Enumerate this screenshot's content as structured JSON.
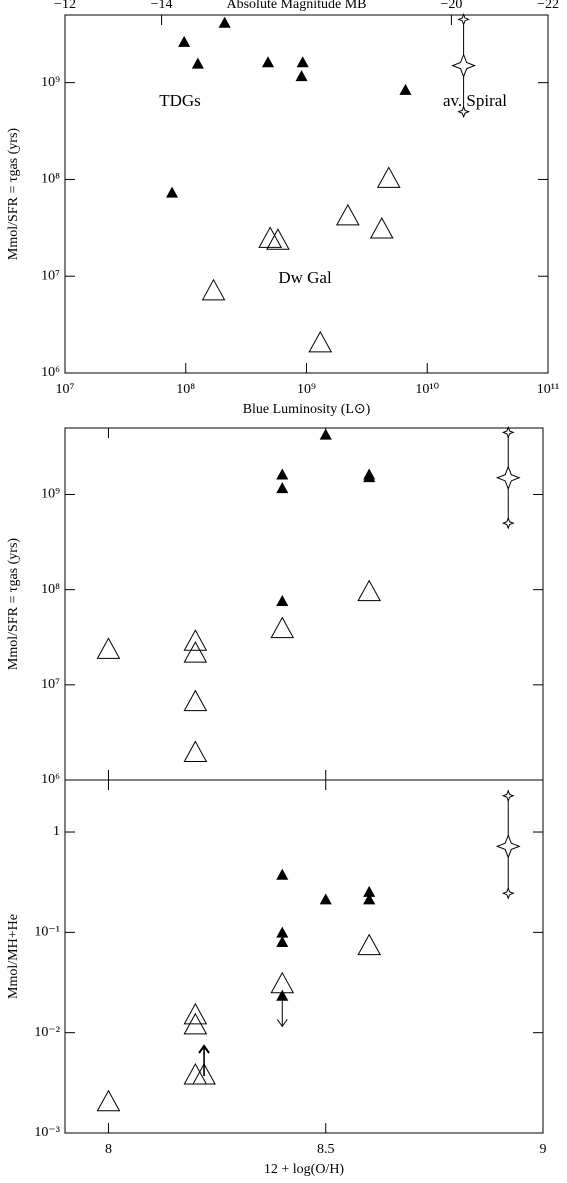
{
  "chart_data": [
    {
      "type": "scatter",
      "xlabel": "Blue Luminosity (L⊙)",
      "ylabel": "Mmol/SFR = τgas (yrs)",
      "x2label": "Absolute Magnitude MB",
      "xscale": "log",
      "yscale": "log",
      "xlim": [
        10000000,
        100000000000
      ],
      "ylim": [
        1000000,
        5000000000
      ],
      "xticks": [
        {
          "value": 10000000,
          "label": "10⁷"
        },
        {
          "value": 100000000,
          "label": "10⁸"
        },
        {
          "value": 1000000000,
          "label": "10⁹"
        },
        {
          "value": 10000000000,
          "label": "10¹⁰"
        },
        {
          "value": 100000000000,
          "label": "10¹¹"
        }
      ],
      "yticks": [
        {
          "value": 1000000,
          "label": "10⁶"
        },
        {
          "value": 10000000,
          "label": "10⁷"
        },
        {
          "value": 100000000,
          "label": "10⁸"
        },
        {
          "value": 1000000000,
          "label": "10⁹"
        }
      ],
      "x2lim": [
        -12,
        -22
      ],
      "x2ticks": [
        {
          "value": -12,
          "label": "−12"
        },
        {
          "value": -14,
          "label": "−14"
        },
        {
          "value": -20,
          "label": "−20"
        },
        {
          "value": -22,
          "label": "−22"
        }
      ],
      "annotations": [
        "TDGs",
        "av. Spiral",
        "Dw Gal"
      ],
      "series": [
        {
          "marker": "filled-triangle",
          "x": [
            77000000,
            97000000,
            126000000,
            210000000,
            480000000,
            930000000,
            910000000,
            6600000000
          ],
          "values": [
            72000000,
            2600000000,
            1550000000,
            4100000000,
            1600000000,
            1600000000,
            1150000000,
            830000000
          ]
        },
        {
          "marker": "open-triangle",
          "x": [
            4800000000,
            2200000000,
            4200000000,
            500000000,
            580000000,
            170000000,
            1300000000
          ],
          "values": [
            100000000,
            41000000,
            30000000,
            24000000,
            23000000,
            6900000,
            2000000
          ]
        },
        {
          "marker": "star",
          "x": [
            20000000000
          ],
          "values": [
            1500000000
          ],
          "low": [
            500000000
          ],
          "high": [
            4500000000
          ]
        }
      ]
    },
    {
      "type": "scatter",
      "ylabel": "Mmol/SFR = τgas (yrs)",
      "xscale": "linear",
      "yscale": "log",
      "xlim": [
        7.9,
        9.0
      ],
      "ylim": [
        1000000,
        5000000000
      ],
      "xticks": [
        8,
        8.5,
        9
      ],
      "show_xtick_labels": false,
      "yticks": [
        {
          "value": 1000000,
          "label": "10⁶"
        },
        {
          "value": 10000000,
          "label": "10⁷"
        },
        {
          "value": 100000000,
          "label": "10⁸"
        },
        {
          "value": 1000000000,
          "label": "10⁹"
        }
      ],
      "series": [
        {
          "marker": "filled-triangle",
          "x": [
            8.4,
            8.4,
            8.4,
            8.5,
            8.6,
            8.6
          ],
          "values": [
            1600000000,
            1150000000,
            75000000,
            4200000000,
            1600000000,
            1500000000
          ]
        },
        {
          "marker": "open-triangle",
          "x": [
            8.0,
            8.2,
            8.2,
            8.2,
            8.2,
            8.4,
            8.6
          ],
          "values": [
            23000000,
            28000000,
            21000000,
            6500000,
            1900000,
            38000000,
            93000000
          ]
        },
        {
          "marker": "star",
          "x": [
            8.92
          ],
          "values": [
            1500000000
          ],
          "low": [
            500000000
          ],
          "high": [
            4500000000
          ]
        }
      ]
    },
    {
      "type": "scatter",
      "xlabel": "12 + log(O/H)",
      "ylabel": "Mmol/MH+He",
      "xscale": "linear",
      "yscale": "log",
      "xlim": [
        7.9,
        9.0
      ],
      "ylim": [
        0.001,
        3.3
      ],
      "xticks": [
        8,
        8.5,
        9
      ],
      "show_xtick_labels": true,
      "yticks": [
        {
          "value": 0.001,
          "label": "10⁻³"
        },
        {
          "value": 0.01,
          "label": "10⁻²"
        },
        {
          "value": 0.1,
          "label": "10⁻¹"
        },
        1
      ],
      "series": [
        {
          "marker": "filled-triangle",
          "x": [
            8.4,
            8.4,
            8.4,
            8.5,
            8.6,
            8.6
          ],
          "values": [
            0.37,
            0.098,
            0.079,
            0.21,
            0.25,
            0.21
          ]
        },
        {
          "marker": "filled-triangle",
          "arrow": "down",
          "x": [
            8.4
          ],
          "values": [
            0.023
          ]
        },
        {
          "marker": "open-triangle",
          "x": [
            8.0,
            8.2,
            8.2,
            8.2,
            8.4,
            8.6
          ],
          "values": [
            0.002,
            0.0147,
            0.0117,
            0.0037,
            0.03,
            0.072
          ]
        },
        {
          "marker": "open-triangle",
          "arrow": "up",
          "x": [
            8.22
          ],
          "values": [
            0.0037
          ]
        },
        {
          "marker": "star",
          "x": [
            8.92
          ],
          "values": [
            0.72
          ],
          "low": [
            0.245
          ],
          "high": [
            2.3
          ]
        }
      ]
    }
  ]
}
